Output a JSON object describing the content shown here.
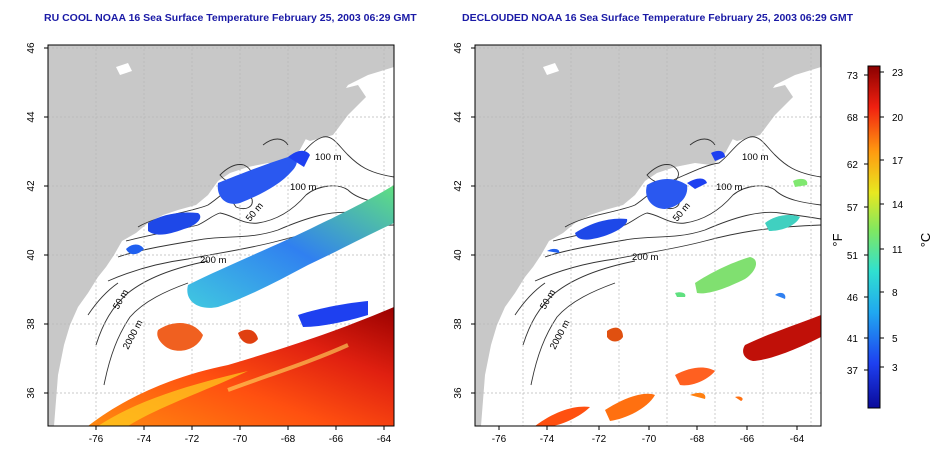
{
  "titles": {
    "left": "RU COOL NOAA 16 Sea Surface Temperature February 25, 2003 06:29 GMT",
    "right": "DECLOUDED NOAA 16 Sea Surface Temperature February 25, 2003 06:29 GMT"
  },
  "axes": {
    "x_ticks": [
      "-76",
      "-74",
      "-72",
      "-70",
      "-68",
      "-66",
      "-64"
    ],
    "y_ticks": [
      "36",
      "38",
      "40",
      "42",
      "44",
      "46"
    ]
  },
  "contour_labels": [
    "100 m",
    "100 m",
    "50 m",
    "200 m",
    "50 m",
    "2000 m"
  ],
  "colorbar": {
    "fahrenheit_label": "°F",
    "celsius_label": "°C",
    "fahrenheit_ticks": [
      "73",
      "68",
      "62",
      "57",
      "51",
      "46",
      "41",
      "37"
    ],
    "celsius_ticks": [
      "23",
      "20",
      "17",
      "14",
      "11",
      "8",
      "5",
      "3"
    ]
  },
  "colors": {
    "land": "#c8c8c8",
    "title": "#1a1aa6",
    "cold": "#0a18a8",
    "warm": "#b30000"
  }
}
